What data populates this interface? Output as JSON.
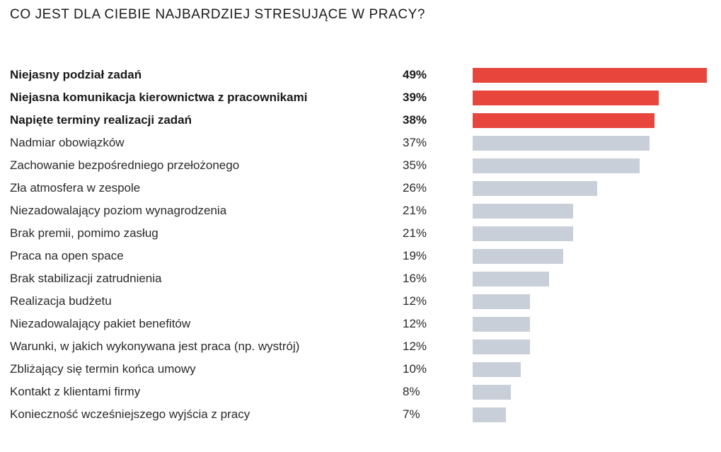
{
  "colors": {
    "highlight": "#e8453c",
    "normal": "#c9cfd8"
  },
  "chart_data": {
    "type": "bar",
    "orientation": "horizontal",
    "title": "CO JEST DLA CIEBIE NAJBARDZIEJ STRESUJĄCE W PRACY?",
    "xlim": [
      0,
      49
    ],
    "unit": "%",
    "highlight_top_n": 3,
    "categories": [
      "Niejasny podział zadań",
      "Niejasna komunikacja kierownictwa z pracownikami",
      "Napięte terminy realizacji zadań",
      "Nadmiar obowiązków",
      "Zachowanie bezpośredniego przełożonego",
      "Zła atmosfera w zespole",
      "Niezadowalający poziom wynagrodzenia",
      "Brak premii, pomimo zasług",
      "Praca na open space",
      "Brak stabilizacji zatrudnienia",
      "Realizacja budżetu",
      "Niezadowalający pakiet benefitów",
      "Warunki, w jakich wykonywana jest praca (np. wystrój)",
      "Zbliżający się termin końca umowy",
      "Kontakt z klientami firmy",
      "Konieczność wcześniejszego wyjścia z pracy"
    ],
    "values": [
      49,
      39,
      38,
      37,
      35,
      26,
      21,
      21,
      19,
      16,
      12,
      12,
      12,
      10,
      8,
      7
    ],
    "value_labels": [
      "49%",
      "39%",
      "38%",
      "37%",
      "35%",
      "26%",
      "21%",
      "21%",
      "19%",
      "16%",
      "12%",
      "12%",
      "12%",
      "10%",
      "8%",
      "7%"
    ]
  }
}
